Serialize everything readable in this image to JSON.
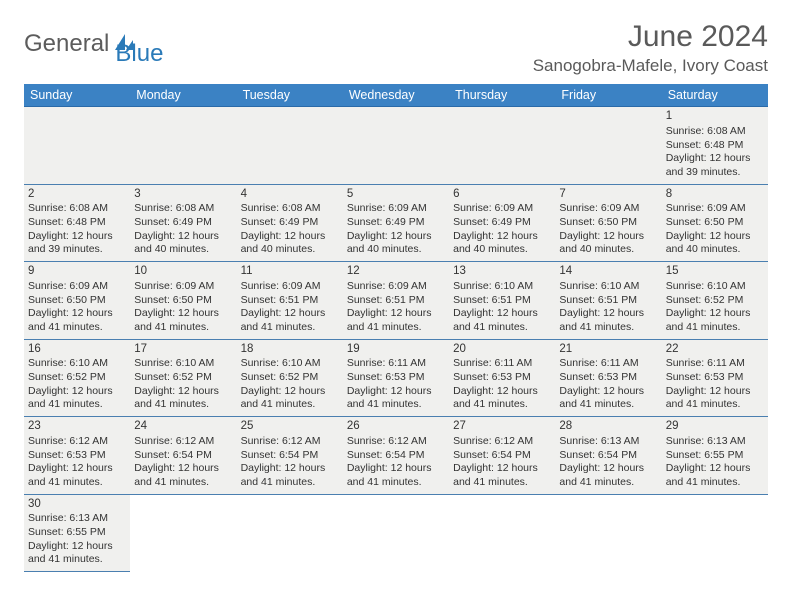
{
  "brand": {
    "main": "General",
    "sub": "Blue"
  },
  "title": "June 2024",
  "location": "Sanogobra-Mafele, Ivory Coast",
  "colors": {
    "header_bg": "#3b82c4",
    "header_text": "#ffffff",
    "cell_bg": "#f0f0ee",
    "border": "#4a7fb0",
    "logo_blue": "#2a7ab8",
    "logo_gray": "#5c5c5c",
    "title_color": "#5a5a5a"
  },
  "days": [
    "Sunday",
    "Monday",
    "Tuesday",
    "Wednesday",
    "Thursday",
    "Friday",
    "Saturday"
  ],
  "weeks": [
    [
      null,
      null,
      null,
      null,
      null,
      null,
      {
        "n": "1",
        "sr": "6:08 AM",
        "ss": "6:48 PM",
        "dl": "12 hours and 39 minutes."
      }
    ],
    [
      {
        "n": "2",
        "sr": "6:08 AM",
        "ss": "6:48 PM",
        "dl": "12 hours and 39 minutes."
      },
      {
        "n": "3",
        "sr": "6:08 AM",
        "ss": "6:49 PM",
        "dl": "12 hours and 40 minutes."
      },
      {
        "n": "4",
        "sr": "6:08 AM",
        "ss": "6:49 PM",
        "dl": "12 hours and 40 minutes."
      },
      {
        "n": "5",
        "sr": "6:09 AM",
        "ss": "6:49 PM",
        "dl": "12 hours and 40 minutes."
      },
      {
        "n": "6",
        "sr": "6:09 AM",
        "ss": "6:49 PM",
        "dl": "12 hours and 40 minutes."
      },
      {
        "n": "7",
        "sr": "6:09 AM",
        "ss": "6:50 PM",
        "dl": "12 hours and 40 minutes."
      },
      {
        "n": "8",
        "sr": "6:09 AM",
        "ss": "6:50 PM",
        "dl": "12 hours and 40 minutes."
      }
    ],
    [
      {
        "n": "9",
        "sr": "6:09 AM",
        "ss": "6:50 PM",
        "dl": "12 hours and 41 minutes."
      },
      {
        "n": "10",
        "sr": "6:09 AM",
        "ss": "6:50 PM",
        "dl": "12 hours and 41 minutes."
      },
      {
        "n": "11",
        "sr": "6:09 AM",
        "ss": "6:51 PM",
        "dl": "12 hours and 41 minutes."
      },
      {
        "n": "12",
        "sr": "6:09 AM",
        "ss": "6:51 PM",
        "dl": "12 hours and 41 minutes."
      },
      {
        "n": "13",
        "sr": "6:10 AM",
        "ss": "6:51 PM",
        "dl": "12 hours and 41 minutes."
      },
      {
        "n": "14",
        "sr": "6:10 AM",
        "ss": "6:51 PM",
        "dl": "12 hours and 41 minutes."
      },
      {
        "n": "15",
        "sr": "6:10 AM",
        "ss": "6:52 PM",
        "dl": "12 hours and 41 minutes."
      }
    ],
    [
      {
        "n": "16",
        "sr": "6:10 AM",
        "ss": "6:52 PM",
        "dl": "12 hours and 41 minutes."
      },
      {
        "n": "17",
        "sr": "6:10 AM",
        "ss": "6:52 PM",
        "dl": "12 hours and 41 minutes."
      },
      {
        "n": "18",
        "sr": "6:10 AM",
        "ss": "6:52 PM",
        "dl": "12 hours and 41 minutes."
      },
      {
        "n": "19",
        "sr": "6:11 AM",
        "ss": "6:53 PM",
        "dl": "12 hours and 41 minutes."
      },
      {
        "n": "20",
        "sr": "6:11 AM",
        "ss": "6:53 PM",
        "dl": "12 hours and 41 minutes."
      },
      {
        "n": "21",
        "sr": "6:11 AM",
        "ss": "6:53 PM",
        "dl": "12 hours and 41 minutes."
      },
      {
        "n": "22",
        "sr": "6:11 AM",
        "ss": "6:53 PM",
        "dl": "12 hours and 41 minutes."
      }
    ],
    [
      {
        "n": "23",
        "sr": "6:12 AM",
        "ss": "6:53 PM",
        "dl": "12 hours and 41 minutes."
      },
      {
        "n": "24",
        "sr": "6:12 AM",
        "ss": "6:54 PM",
        "dl": "12 hours and 41 minutes."
      },
      {
        "n": "25",
        "sr": "6:12 AM",
        "ss": "6:54 PM",
        "dl": "12 hours and 41 minutes."
      },
      {
        "n": "26",
        "sr": "6:12 AM",
        "ss": "6:54 PM",
        "dl": "12 hours and 41 minutes."
      },
      {
        "n": "27",
        "sr": "6:12 AM",
        "ss": "6:54 PM",
        "dl": "12 hours and 41 minutes."
      },
      {
        "n": "28",
        "sr": "6:13 AM",
        "ss": "6:54 PM",
        "dl": "12 hours and 41 minutes."
      },
      {
        "n": "29",
        "sr": "6:13 AM",
        "ss": "6:55 PM",
        "dl": "12 hours and 41 minutes."
      }
    ],
    [
      {
        "n": "30",
        "sr": "6:13 AM",
        "ss": "6:55 PM",
        "dl": "12 hours and 41 minutes."
      },
      null,
      null,
      null,
      null,
      null,
      null
    ]
  ],
  "labels": {
    "sunrise": "Sunrise:",
    "sunset": "Sunset:",
    "daylight": "Daylight:"
  }
}
